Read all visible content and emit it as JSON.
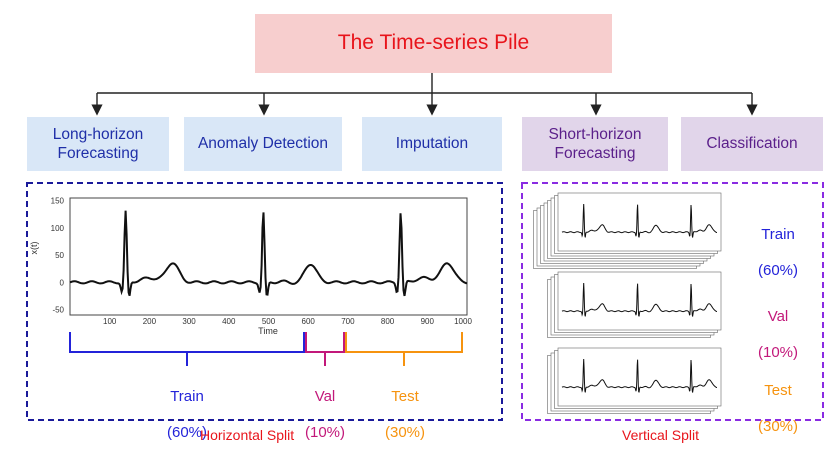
{
  "title": "The Time-series Pile",
  "tasks": [
    {
      "label": "Long-horizon\nForecasting"
    },
    {
      "label": "Anomaly Detection"
    },
    {
      "label": "Imputation"
    },
    {
      "label": "Short-horizon\nForecasting"
    },
    {
      "label": "Classification"
    }
  ],
  "horizontal_split": {
    "caption": "Horizontal Split",
    "plot": {
      "ylabel": "x(t)",
      "xlabel": "Time",
      "xticks": [
        "100",
        "200",
        "300",
        "400",
        "500",
        "600",
        "700",
        "800",
        "900",
        "1000"
      ],
      "yticks": [
        "150",
        "100",
        "50",
        "0",
        "-50"
      ]
    },
    "segments": [
      {
        "name": "Train",
        "pct": "(60%)",
        "color": "#2323d9"
      },
      {
        "name": "Val",
        "pct": "(10%)",
        "color": "#c2187a"
      },
      {
        "name": "Test",
        "pct": "(30%)",
        "color": "#f6930f"
      }
    ]
  },
  "vertical_split": {
    "caption": "Vertical Split",
    "segments": [
      {
        "name": "Train",
        "pct": "(60%)",
        "color": "#2323d9"
      },
      {
        "name": "Val",
        "pct": "(10%)",
        "color": "#c2187a"
      },
      {
        "name": "Test",
        "pct": "(30%)",
        "color": "#f6930f"
      }
    ]
  },
  "colors": {
    "arrow": "#222222",
    "horizontal_border": "#1a1a9a",
    "vertical_border": "#8a2be2"
  }
}
